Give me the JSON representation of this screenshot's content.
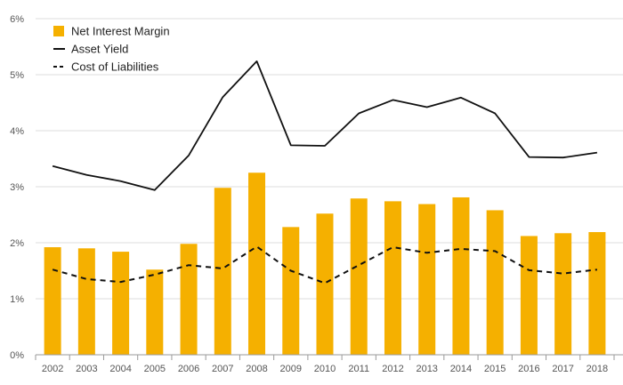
{
  "chart_data": {
    "type": "bar",
    "categories": [
      "2002",
      "2003",
      "2004",
      "2005",
      "2006",
      "2007",
      "2008",
      "2009",
      "2010",
      "2011",
      "2012",
      "2013",
      "2014",
      "2015",
      "2016",
      "2017",
      "2018"
    ],
    "series": [
      {
        "name": "Net Interest Margin",
        "type": "bar",
        "color": "#f5b000",
        "values": [
          1.92,
          1.9,
          1.84,
          1.52,
          1.98,
          2.98,
          3.25,
          2.28,
          2.52,
          2.79,
          2.74,
          2.69,
          2.81,
          2.58,
          2.12,
          2.17,
          2.19
        ]
      },
      {
        "name": "Asset Yield",
        "type": "line",
        "style": "solid",
        "color": "#111111",
        "values": [
          3.37,
          3.21,
          3.1,
          2.94,
          3.56,
          4.6,
          5.24,
          3.74,
          3.73,
          4.31,
          4.55,
          4.42,
          4.59,
          4.31,
          3.53,
          3.52,
          3.61
        ]
      },
      {
        "name": "Cost of Liabilities",
        "type": "line",
        "style": "dashed",
        "color": "#111111",
        "values": [
          1.52,
          1.35,
          1.3,
          1.43,
          1.6,
          1.54,
          1.93,
          1.5,
          1.28,
          1.6,
          1.92,
          1.82,
          1.89,
          1.85,
          1.51,
          1.45,
          1.52
        ]
      }
    ],
    "y_ticks": [
      "0%",
      "1%",
      "2%",
      "3%",
      "4%",
      "5%",
      "6%"
    ],
    "ylim": [
      0,
      6
    ],
    "ylabel": "",
    "xlabel": "",
    "title": "",
    "grid": true,
    "legend_position": "top-left"
  }
}
